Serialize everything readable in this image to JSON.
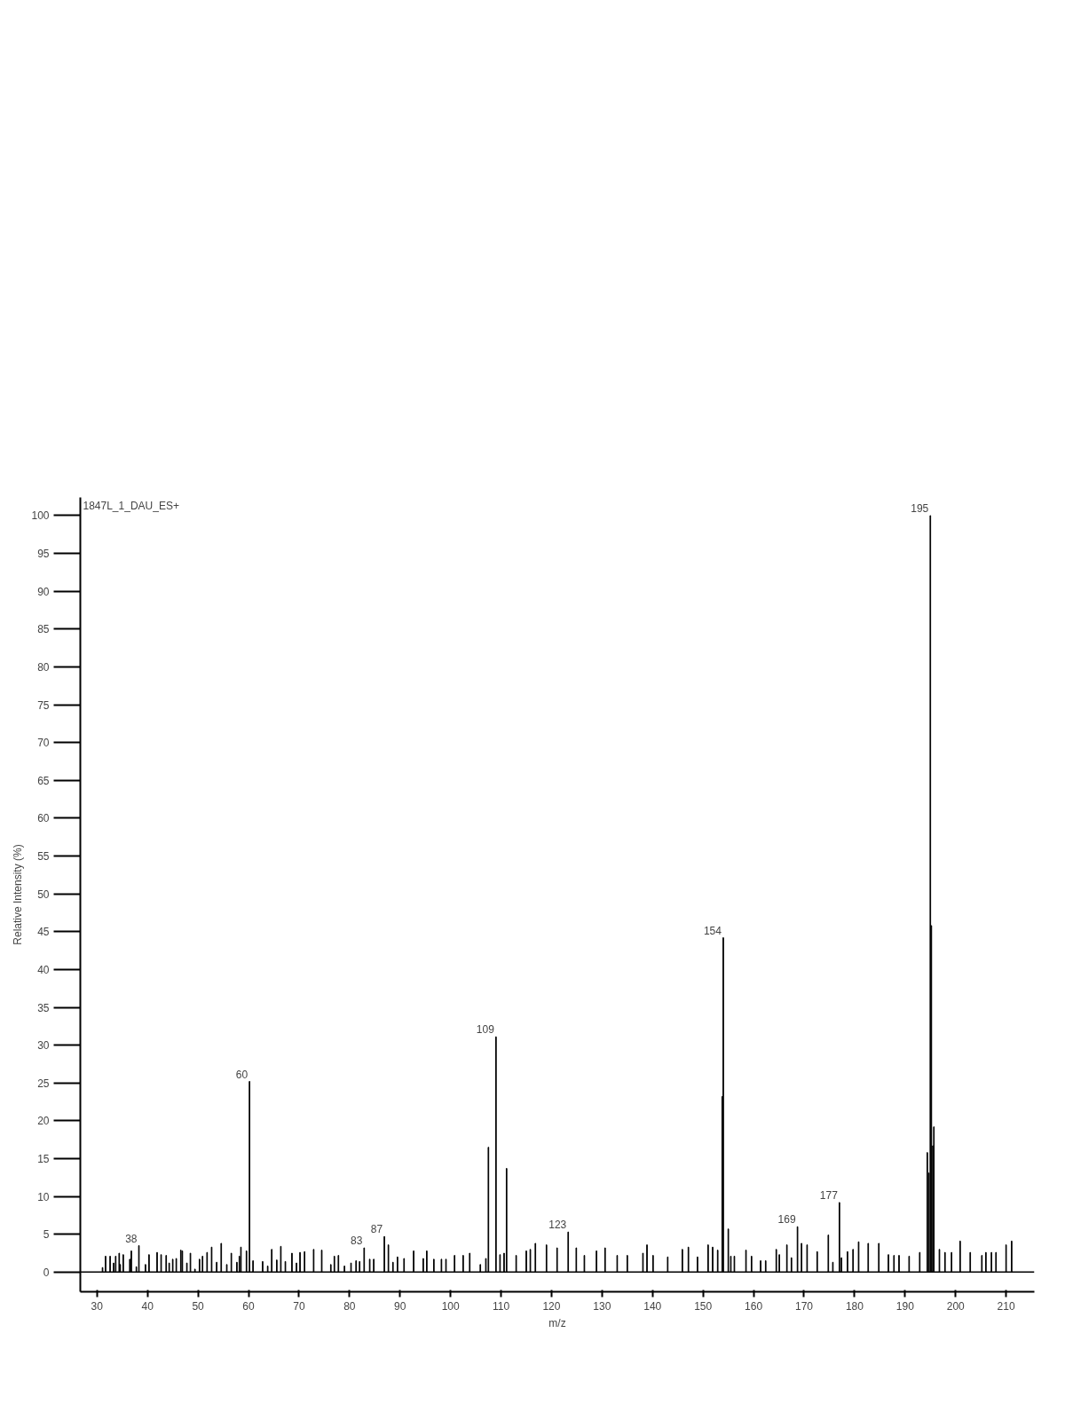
{
  "chart_data": {
    "type": "bar",
    "title": "1847L_1_DAU_ES+",
    "xlabel": "m/z",
    "ylabel": "Relative Intensity (%)",
    "x": [
      31.1,
      31.7,
      32.6,
      33.3,
      33.7,
      34.4,
      34.6,
      35.2,
      36.5,
      36.8,
      37.8,
      38.3,
      39.6,
      40.3,
      41.9,
      42.7,
      43.7,
      44.3,
      45.0,
      45.7,
      46.6,
      46.9,
      47.8,
      48.5,
      49.4,
      50.3,
      50.9,
      51.8,
      52.7,
      53.7,
      54.6,
      55.7,
      56.6,
      57.7,
      58.2,
      58.5,
      59.6,
      60.2,
      60.9,
      62.8,
      63.8,
      64.6,
      65.6,
      66.4,
      67.3,
      68.6,
      69.5,
      70.2,
      71.1,
      72.9,
      74.5,
      76.3,
      77.0,
      77.8,
      79.0,
      80.3,
      81.3,
      82.0,
      82.9,
      84.0,
      84.8,
      86.9,
      87.7,
      88.6,
      89.5,
      90.8,
      92.7,
      94.6,
      95.3,
      96.7,
      98.2,
      99.1,
      100.8,
      102.5,
      103.8,
      105.9,
      107.0,
      107.5,
      109.0,
      109.8,
      110.6,
      111.1,
      113.0,
      115.0,
      115.8,
      116.8,
      119.0,
      121.1,
      123.3,
      124.9,
      126.5,
      128.9,
      130.6,
      133.0,
      135.0,
      138.1,
      138.9,
      140.1,
      143.0,
      145.9,
      147.1,
      148.9,
      151.0,
      151.9,
      152.9,
      153.8,
      154.0,
      155.0,
      155.5,
      156.2,
      158.5,
      159.6,
      161.4,
      162.4,
      164.5,
      165.1,
      166.6,
      167.5,
      168.7,
      169.5,
      170.6,
      172.6,
      174.8,
      175.7,
      177.0,
      177.4,
      178.6,
      179.7,
      180.8,
      182.7,
      184.8,
      186.7,
      187.8,
      188.8,
      190.8,
      192.9,
      194.4,
      194.7,
      195.0,
      195.2,
      195.5,
      195.7,
      196.8,
      197.9,
      199.2,
      200.9,
      202.9,
      205.2,
      206.0,
      207.1,
      208.0,
      210.0,
      211.1
    ],
    "values": [
      0.6,
      2.1,
      2.1,
      1.2,
      2.1,
      2.5,
      1.0,
      2.3,
      1.7,
      2.8,
      0.7,
      3.5,
      1.0,
      2.3,
      2.6,
      2.3,
      2.2,
      1.2,
      1.7,
      1.8,
      2.9,
      2.8,
      1.2,
      2.5,
      0.4,
      1.7,
      2.1,
      2.6,
      3.3,
      1.3,
      3.8,
      1.0,
      2.5,
      1.3,
      2.1,
      3.3,
      2.8,
      25.2,
      1.5,
      1.4,
      0.8,
      3.0,
      1.6,
      3.4,
      1.4,
      2.5,
      1.2,
      2.6,
      2.7,
      3.0,
      2.9,
      1.0,
      2.1,
      2.2,
      0.8,
      1.2,
      1.5,
      1.4,
      3.2,
      1.7,
      1.7,
      4.7,
      3.6,
      1.3,
      2.0,
      1.8,
      2.8,
      1.8,
      2.8,
      1.7,
      1.7,
      1.7,
      2.2,
      2.2,
      2.5,
      1.0,
      1.8,
      16.5,
      31.1,
      2.3,
      2.5,
      13.7,
      2.2,
      2.8,
      3.0,
      3.8,
      3.6,
      3.2,
      5.3,
      3.2,
      2.2,
      2.8,
      3.2,
      2.2,
      2.2,
      2.5,
      3.6,
      2.2,
      2.0,
      3.0,
      3.3,
      2.0,
      3.6,
      3.3,
      2.9,
      23.2,
      44.2,
      5.7,
      2.1,
      2.1,
      2.9,
      2.1,
      1.5,
      1.5,
      3.0,
      2.3,
      3.6,
      1.9,
      6.0,
      3.8,
      3.6,
      2.7,
      4.9,
      1.3,
      9.2,
      1.9,
      2.7,
      3.0,
      4.0,
      3.8,
      3.8,
      2.3,
      2.2,
      2.2,
      2.1,
      2.6,
      15.8,
      13.1,
      100,
      45.8,
      16.7,
      19.2,
      3.0,
      2.6,
      2.6,
      4.1,
      2.6,
      2.2,
      2.6,
      2.6,
      2.6,
      3.6,
      4.1
    ],
    "annotations": [
      {
        "text": "38",
        "x": 38.3,
        "y": 3.5
      },
      {
        "text": "60",
        "x": 60.2,
        "y": 25.2
      },
      {
        "text": "83",
        "x": 82.9,
        "y": 3.2
      },
      {
        "text": "87",
        "x": 86.9,
        "y": 4.7
      },
      {
        "text": "109",
        "x": 109.0,
        "y": 31.1
      },
      {
        "text": "123",
        "x": 123.3,
        "y": 5.3
      },
      {
        "text": "154",
        "x": 154.0,
        "y": 44.2
      },
      {
        "text": "169",
        "x": 168.7,
        "y": 6.0
      },
      {
        "text": "177",
        "x": 177.0,
        "y": 9.2
      },
      {
        "text": "195",
        "x": 195.0,
        "y": 100
      }
    ],
    "color": "#000000",
    "xlim": [
      26.7,
      215.6
    ],
    "xticks": [
      30,
      40,
      50,
      60,
      70,
      80,
      90,
      100,
      110,
      120,
      130,
      140,
      150,
      160,
      170,
      180,
      190,
      200,
      210
    ],
    "ylim": [
      -2.6,
      102.4
    ],
    "yticks": [
      0,
      5,
      10,
      15,
      20,
      25,
      30,
      35,
      40,
      45,
      50,
      55,
      60,
      65,
      70,
      75,
      80,
      85,
      90,
      95,
      100
    ],
    "ref_lines": [
      {
        "axis": "y",
        "value": 0,
        "color": "#000000"
      }
    ],
    "grid": false
  }
}
